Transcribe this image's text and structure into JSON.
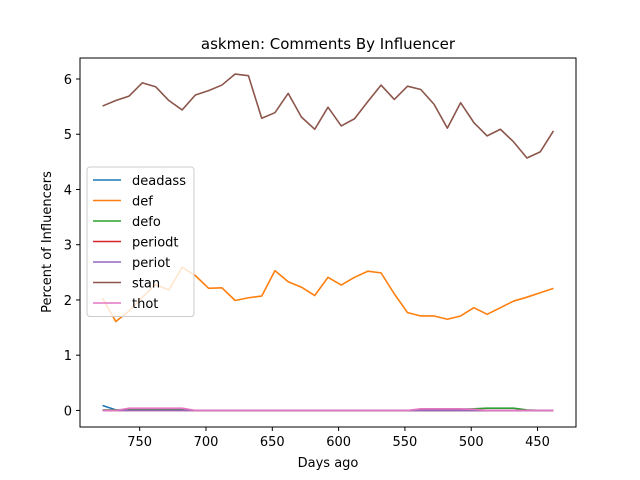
{
  "chart_data": {
    "type": "line",
    "title": "askmen: Comments By Influencer",
    "xlabel": "Days ago",
    "ylabel": "Percent of Influencers",
    "xlim": [
      795,
      421
    ],
    "ylim": [
      -0.3,
      6.38
    ],
    "x_reversed": true,
    "xticks": [
      750,
      700,
      650,
      600,
      550,
      500,
      450
    ],
    "yticks": [
      0,
      1,
      2,
      3,
      4,
      5,
      6
    ],
    "legend_position": "center-left",
    "grid": false,
    "x": [
      778,
      768,
      758,
      748,
      738,
      728,
      718,
      708,
      698,
      688,
      678,
      668,
      658,
      648,
      638,
      628,
      618,
      608,
      598,
      588,
      578,
      568,
      558,
      548,
      538,
      528,
      518,
      508,
      498,
      488,
      478,
      468,
      458,
      448,
      438
    ],
    "series": [
      {
        "name": "deadass",
        "color": "#1f77b4",
        "values": [
          0.09,
          0.01,
          0.01,
          0.01,
          0.01,
          0.01,
          0.01,
          0.0,
          0.0,
          0.0,
          0.0,
          0.0,
          0.0,
          0.0,
          0.0,
          0.0,
          0.0,
          0.0,
          0.0,
          0.0,
          0.0,
          0.0,
          0.0,
          0.0,
          0.0,
          0.0,
          0.0,
          0.0,
          0.0,
          0.0,
          0.0,
          0.0,
          0.0,
          0.0,
          0.0
        ]
      },
      {
        "name": "def",
        "color": "#ff7f0e",
        "values": [
          2.03,
          1.61,
          1.8,
          2.05,
          2.28,
          2.18,
          2.59,
          2.44,
          2.21,
          2.22,
          1.99,
          2.04,
          2.07,
          2.53,
          2.33,
          2.23,
          2.08,
          2.41,
          2.27,
          2.41,
          2.52,
          2.49,
          2.11,
          1.77,
          1.71,
          1.71,
          1.65,
          1.71,
          1.86,
          1.74,
          1.86,
          1.98,
          2.05,
          2.13,
          2.21
        ]
      },
      {
        "name": "defo",
        "color": "#2ca02c",
        "values": [
          0.01,
          0.01,
          0.01,
          0.01,
          0.01,
          0.01,
          0.01,
          0.0,
          0.0,
          0.0,
          0.0,
          0.0,
          0.0,
          0.0,
          0.0,
          0.0,
          0.0,
          0.0,
          0.0,
          0.0,
          0.0,
          0.0,
          0.0,
          0.0,
          0.01,
          0.01,
          0.01,
          0.02,
          0.03,
          0.04,
          0.04,
          0.04,
          0.01,
          0.0,
          0.0
        ]
      },
      {
        "name": "periodt",
        "color": "#d62728",
        "values": [
          0.0,
          0.0,
          0.0,
          0.0,
          0.0,
          0.0,
          0.0,
          0.0,
          0.0,
          0.0,
          0.0,
          0.0,
          0.0,
          0.0,
          0.0,
          0.0,
          0.0,
          0.0,
          0.0,
          0.0,
          0.0,
          0.0,
          0.0,
          0.0,
          0.0,
          0.0,
          0.0,
          0.0,
          0.0,
          0.0,
          0.0,
          0.0,
          0.0,
          0.0,
          0.0
        ]
      },
      {
        "name": "periot",
        "color": "#9467bd",
        "values": [
          0.0,
          0.0,
          0.0,
          0.0,
          0.0,
          0.0,
          0.0,
          0.0,
          0.0,
          0.0,
          0.0,
          0.0,
          0.0,
          0.0,
          0.0,
          0.0,
          0.0,
          0.0,
          0.0,
          0.0,
          0.0,
          0.0,
          0.0,
          0.0,
          0.0,
          0.0,
          0.0,
          0.0,
          0.0,
          0.0,
          0.0,
          0.0,
          0.0,
          0.0,
          0.0
        ]
      },
      {
        "name": "stan",
        "color": "#8c564b",
        "values": [
          5.51,
          5.61,
          5.69,
          5.93,
          5.86,
          5.61,
          5.44,
          5.71,
          5.79,
          5.89,
          6.09,
          6.06,
          5.29,
          5.39,
          5.74,
          5.31,
          5.09,
          5.49,
          5.15,
          5.28,
          5.59,
          5.89,
          5.63,
          5.87,
          5.81,
          5.54,
          5.11,
          5.57,
          5.21,
          4.97,
          5.09,
          4.86,
          4.57,
          4.68,
          5.06
        ]
      },
      {
        "name": "thot",
        "color": "#e377c2",
        "values": [
          0.0,
          0.0,
          0.04,
          0.04,
          0.04,
          0.04,
          0.04,
          0.0,
          0.0,
          0.0,
          0.0,
          0.0,
          0.0,
          0.0,
          0.0,
          0.0,
          0.0,
          0.0,
          0.0,
          0.0,
          0.0,
          0.0,
          0.0,
          0.0,
          0.03,
          0.03,
          0.03,
          0.03,
          0.02,
          0.0,
          0.0,
          0.0,
          0.0,
          0.0,
          0.0
        ]
      }
    ]
  }
}
